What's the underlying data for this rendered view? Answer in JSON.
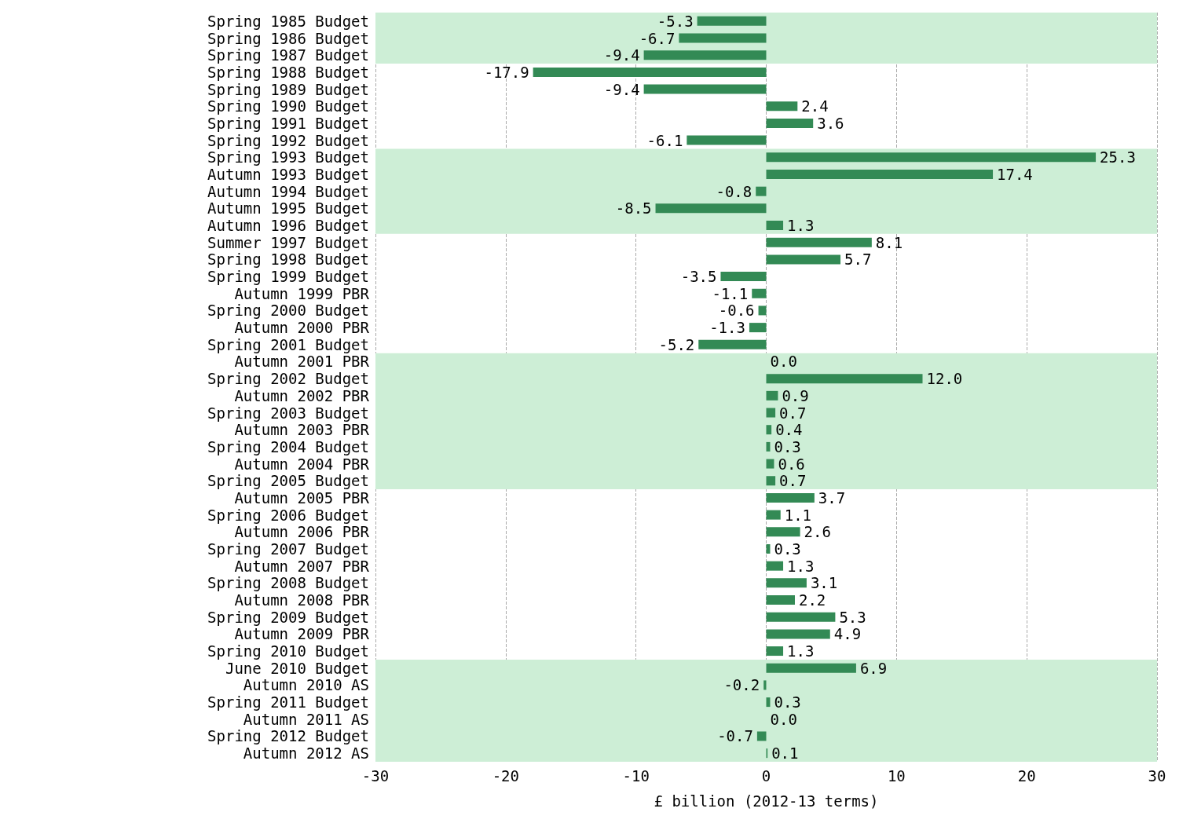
{
  "chart_data": {
    "type": "bar",
    "orientation": "horizontal",
    "xlabel": "£ billion (2012-13 terms)",
    "categories": [
      "Spring 1985 Budget",
      "Spring 1986 Budget",
      "Spring 1987 Budget",
      "Spring 1988 Budget",
      "Spring 1989 Budget",
      "Spring 1990 Budget",
      "Spring 1991 Budget",
      "Spring 1992 Budget",
      "Spring 1993 Budget",
      "Autumn 1993 Budget",
      "Autumn 1994 Budget",
      "Autumn 1995 Budget",
      "Autumn 1996 Budget",
      "Summer 1997 Budget",
      "Spring 1998 Budget",
      "Spring 1999 Budget",
      "Autumn 1999 PBR",
      "Spring 2000 Budget",
      "Autumn 2000 PBR",
      "Spring 2001 Budget",
      "Autumn 2001 PBR",
      "Spring 2002 Budget",
      "Autumn 2002 PBR",
      "Spring 2003 Budget",
      "Autumn 2003 PBR",
      "Spring 2004 Budget",
      "Autumn 2004 PBR",
      "Spring 2005 Budget",
      "Autumn 2005 PBR",
      "Spring 2006 Budget",
      "Autumn 2006 PBR",
      "Spring 2007 Budget",
      "Autumn 2007 PBR",
      "Spring 2008 Budget",
      "Autumn 2008 PBR",
      "Spring 2009 Budget",
      "Autumn 2009 PBR",
      "Spring 2010 Budget",
      "June 2010 Budget",
      "Autumn 2010 AS",
      "Spring 2011 Budget",
      "Autumn 2011 AS",
      "Spring 2012 Budget",
      "Autumn 2012 AS"
    ],
    "values": [
      -5.3,
      -6.7,
      -9.4,
      -17.9,
      -9.4,
      2.4,
      3.6,
      -6.1,
      25.3,
      17.4,
      -0.8,
      -8.5,
      1.3,
      8.1,
      5.7,
      -3.5,
      -1.1,
      -0.6,
      -1.3,
      -5.2,
      0.0,
      12.0,
      0.9,
      0.7,
      0.4,
      0.3,
      0.6,
      0.7,
      3.7,
      1.1,
      2.6,
      0.3,
      1.3,
      3.1,
      2.2,
      5.3,
      4.9,
      1.3,
      6.9,
      -0.2,
      0.3,
      0.0,
      -0.7,
      0.1
    ],
    "value_labels": [
      "-5.3",
      "-6.7",
      "-9.4",
      "-17.9",
      "-9.4",
      "2.4",
      "3.6",
      "-6.1",
      "25.3",
      "17.4",
      "-0.8",
      "-8.5",
      "1.3",
      "8.1",
      "5.7",
      "-3.5",
      "-1.1",
      "-0.6",
      "-1.3",
      "-5.2",
      "0.0",
      "12.0",
      "0.9",
      "0.7",
      "0.4",
      "0.3",
      "0.6",
      "0.7",
      "3.7",
      "1.1",
      "2.6",
      "0.3",
      "1.3",
      "3.1",
      "2.2",
      "5.3",
      "4.9",
      "1.3",
      "6.9",
      "-0.2",
      "0.3",
      "0.0",
      "-0.7",
      "0.1"
    ],
    "color": "#338a55",
    "xlim": [
      -30,
      30
    ],
    "xticks": [
      -30,
      -20,
      -10,
      0,
      10,
      20,
      30
    ],
    "grid": "x",
    "bands": [
      {
        "axis": "y",
        "from": "Spring 1985 Budget",
        "to": "Spring 1987 Budget",
        "color": "#cdeed6"
      },
      {
        "axis": "y",
        "from": "Spring 1993 Budget",
        "to": "Autumn 1996 Budget",
        "color": "#cdeed6"
      },
      {
        "axis": "y",
        "from": "Autumn 2001 PBR",
        "to": "Spring 2005 Budget",
        "color": "#cdeed6"
      },
      {
        "axis": "y",
        "from": "June 2010 Budget",
        "to": "Autumn 2012 AS",
        "color": "#cdeed6"
      }
    ]
  }
}
